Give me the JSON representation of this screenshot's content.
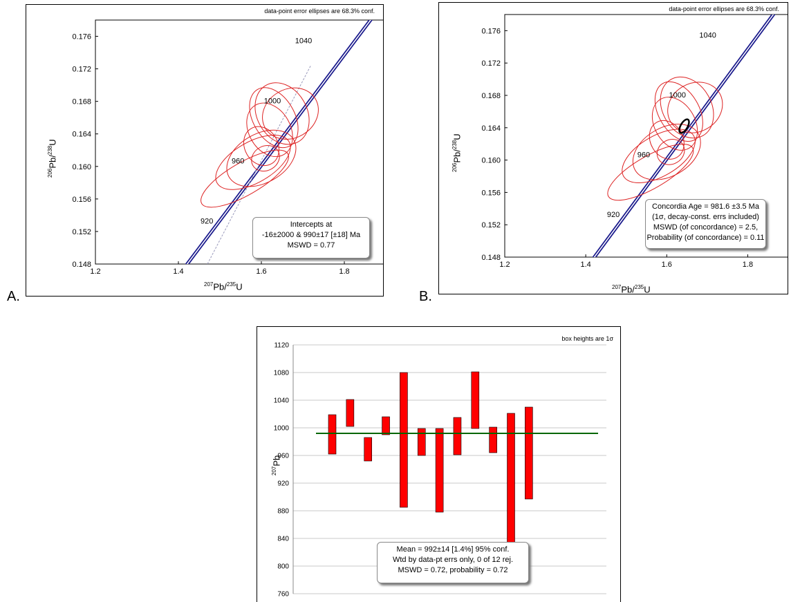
{
  "panels": {
    "a": {
      "letter": "A.",
      "note": "data-point error ellipses are 68.3% conf.",
      "box": [
        "Intercepts at",
        "-16±2000 & 990±17  [±18]  Ma",
        "MSWD = 0.77"
      ]
    },
    "b": {
      "letter": "B.",
      "note": "data-point error ellipses are 68.3% conf.",
      "box": [
        "Concordia Age = 981.6 ±3.5 Ma",
        "(1σ, decay-const. errs included)",
        "MSWD (of concordance) = 2.5,",
        "Probability  (of concordance) = 0.11"
      ]
    },
    "c": {
      "note": "box heights are 1σ",
      "box": [
        "Mean = 992±14  [1.4%]  95% conf.",
        "Wtd by data-pt errs only, 0 of 12 rej.",
        "MSWD = 0.72, probability = 0.72"
      ]
    }
  },
  "chart_data": [
    {
      "type": "scatter",
      "title": "",
      "xlabel": "207Pb/235U",
      "ylabel": "206Pb/238U",
      "xlim": [
        1.2,
        1.9
      ],
      "ylim": [
        0.148,
        0.178
      ],
      "xticks": [
        "1.2",
        "1.4",
        "1.6",
        "1.8"
      ],
      "yticks": [
        "0.148",
        "0.152",
        "0.156",
        "0.160",
        "0.164",
        "0.168",
        "0.172",
        "0.176"
      ],
      "concordia_labels": [
        {
          "label": "920",
          "x": 1.49,
          "y": 0.1533
        },
        {
          "label": "960",
          "x": 1.565,
          "y": 0.1607
        },
        {
          "label": "1000",
          "x": 1.643,
          "y": 0.1681
        },
        {
          "label": "1040",
          "x": 1.718,
          "y": 0.1755
        }
      ],
      "ellipses": [
        {
          "cx": 1.56,
          "cy": 0.1585,
          "rx": 0.12,
          "ry": 0.002
        },
        {
          "cx": 1.58,
          "cy": 0.1605,
          "rx": 0.1,
          "ry": 0.0025
        },
        {
          "cx": 1.6,
          "cy": 0.161,
          "rx": 0.09,
          "ry": 0.003
        },
        {
          "cx": 1.63,
          "cy": 0.166,
          "rx": 0.05,
          "ry": 0.004
        },
        {
          "cx": 1.65,
          "cy": 0.1665,
          "rx": 0.06,
          "ry": 0.004
        },
        {
          "cx": 1.67,
          "cy": 0.1665,
          "rx": 0.07,
          "ry": 0.003
        },
        {
          "cx": 1.62,
          "cy": 0.1645,
          "rx": 0.05,
          "ry": 0.0035
        },
        {
          "cx": 1.6,
          "cy": 0.1625,
          "rx": 0.04,
          "ry": 0.0025
        },
        {
          "cx": 1.61,
          "cy": 0.161,
          "rx": 0.035,
          "ry": 0.0015
        }
      ],
      "discordia_line": true
    },
    {
      "type": "scatter",
      "title": "",
      "xlabel": "207Pb/235U",
      "ylabel": "206Pb/238U",
      "xlim": [
        1.2,
        1.9
      ],
      "ylim": [
        0.148,
        0.178
      ],
      "xticks": [
        "1.2",
        "1.4",
        "1.6",
        "1.8"
      ],
      "yticks": [
        "0.148",
        "0.152",
        "0.156",
        "0.160",
        "0.164",
        "0.168",
        "0.172",
        "0.176"
      ],
      "concordia_labels": [
        {
          "label": "920",
          "x": 1.49,
          "y": 0.1533
        },
        {
          "label": "960",
          "x": 1.565,
          "y": 0.1607
        },
        {
          "label": "1000",
          "x": 1.643,
          "y": 0.1681
        },
        {
          "label": "1040",
          "x": 1.718,
          "y": 0.1755
        }
      ],
      "ellipses": [
        {
          "cx": 1.56,
          "cy": 0.1585,
          "rx": 0.12,
          "ry": 0.002
        },
        {
          "cx": 1.58,
          "cy": 0.1605,
          "rx": 0.1,
          "ry": 0.0025
        },
        {
          "cx": 1.6,
          "cy": 0.161,
          "rx": 0.09,
          "ry": 0.003
        },
        {
          "cx": 1.63,
          "cy": 0.166,
          "rx": 0.05,
          "ry": 0.004
        },
        {
          "cx": 1.65,
          "cy": 0.1665,
          "rx": 0.06,
          "ry": 0.004
        },
        {
          "cx": 1.67,
          "cy": 0.1665,
          "rx": 0.07,
          "ry": 0.003
        },
        {
          "cx": 1.62,
          "cy": 0.1645,
          "rx": 0.05,
          "ry": 0.0035
        },
        {
          "cx": 1.6,
          "cy": 0.1625,
          "rx": 0.04,
          "ry": 0.0025
        },
        {
          "cx": 1.61,
          "cy": 0.161,
          "rx": 0.035,
          "ry": 0.0015
        }
      ],
      "concordia_age_point": {
        "x": 1.643,
        "y": 0.1642
      }
    },
    {
      "type": "bar",
      "title": "",
      "xlabel": "",
      "ylabel": "207Pb",
      "ylim": [
        760,
        1120
      ],
      "yticks": [
        "760",
        "800",
        "840",
        "880",
        "920",
        "960",
        "1000",
        "1040",
        "1080",
        "1120"
      ],
      "bars": [
        {
          "low": 962,
          "high": 1019
        },
        {
          "low": 1002,
          "high": 1041
        },
        {
          "low": 952,
          "high": 986
        },
        {
          "low": 990,
          "high": 1016
        },
        {
          "low": 885,
          "high": 1080
        },
        {
          "low": 960,
          "high": 999
        },
        {
          "low": 878,
          "high": 999
        },
        {
          "low": 961,
          "high": 1015
        },
        {
          "low": 999,
          "high": 1081
        },
        {
          "low": 964,
          "high": 1001
        },
        {
          "low": 798,
          "high": 1021
        },
        {
          "low": 897,
          "high": 1030
        }
      ],
      "mean": 992,
      "colors": {
        "bar": "#ff0000",
        "mean_line": "#006600"
      }
    }
  ]
}
